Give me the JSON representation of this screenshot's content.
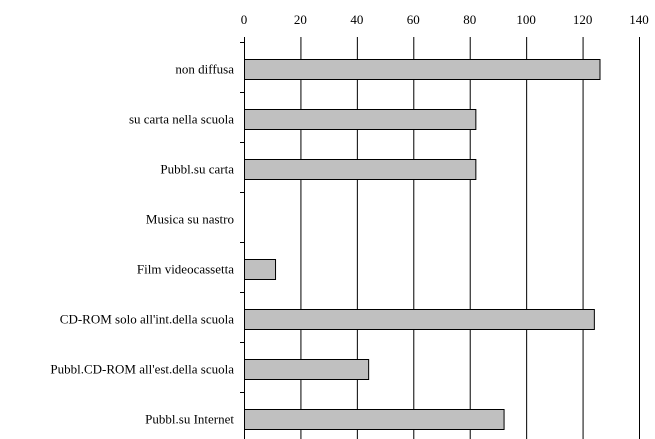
{
  "chart_data": {
    "type": "bar",
    "orientation": "horizontal",
    "x_axis_position": "top",
    "categories": [
      "non diffusa",
      "su carta nella scuola",
      "Pubbl.su carta",
      "Musica su nastro",
      "Film videocassetta",
      "CD-ROM solo all'int.della scuola",
      "Pubbl.CD-ROM all'est.della scuola",
      "Pubbl.su Internet"
    ],
    "values": [
      126,
      82,
      82,
      0,
      11,
      124,
      44,
      92
    ],
    "xlim": [
      0,
      140
    ],
    "xticks": [
      "0",
      "20",
      "40",
      "60",
      "80",
      "100",
      "120",
      "140"
    ],
    "grid": "vertical",
    "legend": "none",
    "title": "",
    "xlabel": "",
    "ylabel": "",
    "colors": {
      "bar_fill": "#c0c0c0",
      "bar_stroke": "#000000",
      "grid": "#000000"
    }
  }
}
